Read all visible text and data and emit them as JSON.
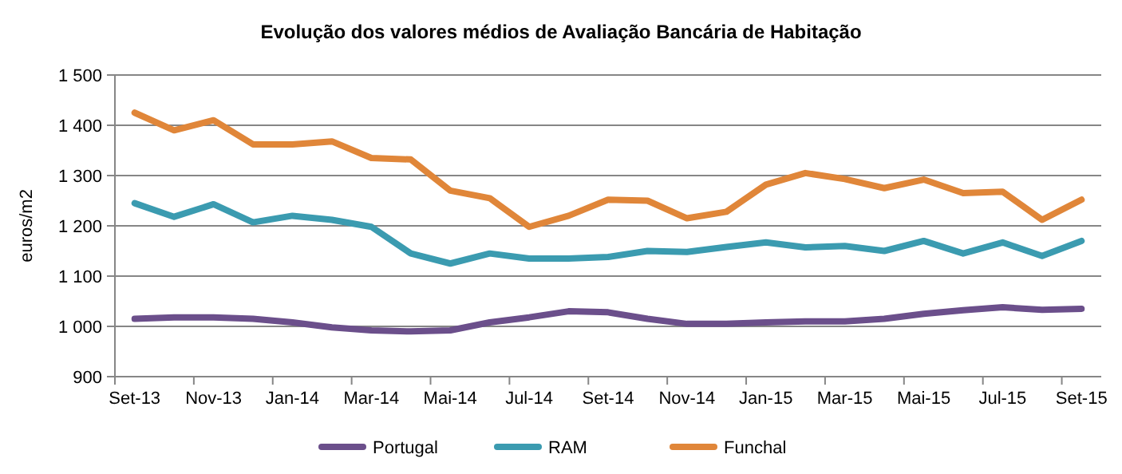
{
  "chart_data": {
    "type": "line",
    "title": "Evolução dos valores médios de Avaliação Bancária de Habitação",
    "ylabel": "euros/m2",
    "categories": [
      "Set-13",
      null,
      "Nov-13",
      null,
      "Jan-14",
      null,
      "Mar-14",
      null,
      "Mai-14",
      null,
      "Jul-14",
      null,
      "Set-14",
      null,
      "Nov-14",
      null,
      "Jan-15",
      null,
      "Mar-15",
      null,
      "Mai-15",
      null,
      "Jul-15",
      null,
      "Set-15"
    ],
    "series": [
      {
        "name": "Portugal",
        "color": "#6b4f8b",
        "values": [
          1015,
          1018,
          1018,
          1015,
          1008,
          998,
          992,
          990,
          992,
          1008,
          1018,
          1030,
          1028,
          1015,
          1005,
          1005,
          1008,
          1010,
          1010,
          1015,
          1025,
          1032,
          1038,
          1033,
          1035
        ]
      },
      {
        "name": "RAM",
        "color": "#3b9bb0",
        "values": [
          1245,
          1218,
          1243,
          1207,
          1220,
          1212,
          1198,
          1145,
          1125,
          1145,
          1135,
          1135,
          1138,
          1150,
          1148,
          1158,
          1167,
          1157,
          1160,
          1150,
          1170,
          1145,
          1167,
          1140,
          1170
        ]
      },
      {
        "name": "Funchal",
        "color": "#e08639",
        "values": [
          1425,
          1390,
          1410,
          1362,
          1362,
          1368,
          1335,
          1332,
          1270,
          1255,
          1198,
          1220,
          1252,
          1250,
          1215,
          1228,
          1282,
          1305,
          1293,
          1275,
          1292,
          1265,
          1268,
          1212,
          1252
        ]
      }
    ],
    "ylim": [
      900,
      1500
    ],
    "yticks": [
      {
        "value": 900,
        "label": "900"
      },
      {
        "value": 1000,
        "label": "1 000"
      },
      {
        "value": 1100,
        "label": "1 100"
      },
      {
        "value": 1200,
        "label": "1 200"
      },
      {
        "value": 1300,
        "label": "1 300"
      },
      {
        "value": 1400,
        "label": "1 400"
      },
      {
        "value": 1500,
        "label": "1 500"
      }
    ],
    "grid": "y",
    "legend": "bottom",
    "marker": "none",
    "line_style": "solid"
  }
}
